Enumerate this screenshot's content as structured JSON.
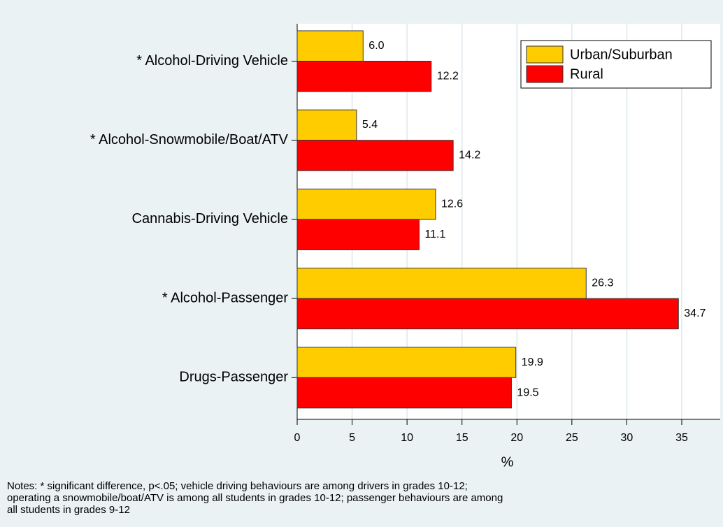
{
  "chart_data": {
    "type": "hbar",
    "categories": [
      "* Alcohol-Driving Vehicle",
      "* Alcohol-Snowmobile/Boat/ATV",
      "Cannabis-Driving Vehicle",
      "* Alcohol-Passenger",
      "Drugs-Passenger"
    ],
    "series": [
      {
        "name": "Urban/Suburban",
        "color": "#ffcc00",
        "values": [
          6.0,
          5.4,
          12.6,
          26.3,
          19.9
        ],
        "value_labels": [
          "6.0",
          "5.4",
          "12.6",
          "26.3",
          "19.9"
        ]
      },
      {
        "name": "Rural",
        "color": "#ff0000",
        "values": [
          12.2,
          14.2,
          11.1,
          34.7,
          19.5
        ],
        "value_labels": [
          "12.2",
          "14.2",
          "11.1",
          "34.7",
          "19.5"
        ]
      }
    ],
    "xlabel": "%",
    "xlim": [
      0,
      38.5
    ],
    "xticks": [
      0,
      5,
      10,
      15,
      20,
      25,
      30,
      35
    ],
    "grid": true,
    "legend": "upper right",
    "notes": [
      "Notes: * significant difference, p<.05; vehicle driving behaviours are among drivers in grades 10-12;",
      "operating a snowmobile/boat/ATV is among all students in grades 10-12; passenger behaviours are among",
      "all students in grades 9-12"
    ]
  }
}
